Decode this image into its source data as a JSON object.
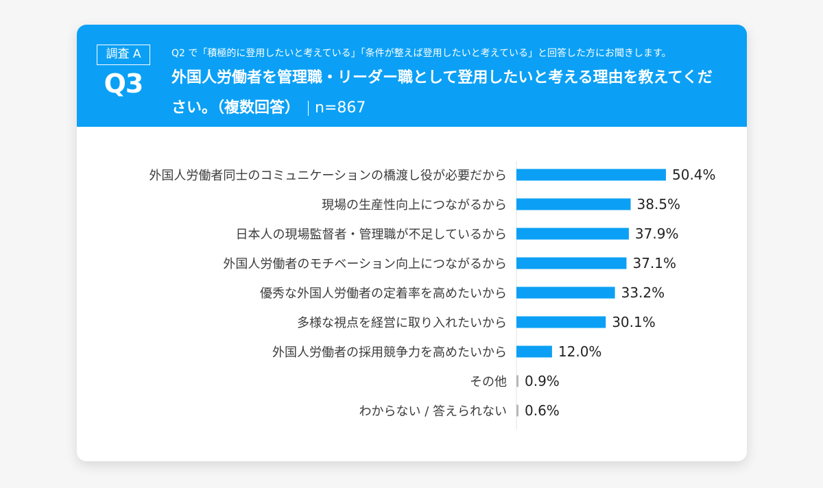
{
  "header": {
    "survey_tag": "調査 A",
    "question_number": "Q3",
    "pre_question": "Q2 で「積極的に登用したいと考えている」「条件が整えば登用したいと考えている」と回答した方にお聞きします。",
    "title": "外国人労働者を管理職・リーダー職として登用したいと考える理由を教えてください。（複数回答）",
    "sample_size": "n=867"
  },
  "colors": {
    "header_bg": "#0ba0f5",
    "bar": "#0ba0f5",
    "bar_small": "#b8b8b8"
  },
  "chart_data": {
    "type": "bar",
    "orientation": "horizontal",
    "unit": "%",
    "categories": [
      "外国人労働者同士のコミュニケーションの橋渡し役が必要だから",
      "現場の生産性向上につながるから",
      "日本人の現場監督者・管理職が不足しているから",
      "外国人労働者のモチベーション向上につながるから",
      "優秀な外国人労働者の定着率を高めたいから",
      "多様な視点を経営に取り入れたいから",
      "外国人労働者の採用競争力を高めたいから",
      "その他",
      "わからない / 答えられない"
    ],
    "values": [
      50.4,
      38.5,
      37.9,
      37.1,
      33.2,
      30.1,
      12.0,
      0.9,
      0.6
    ],
    "value_labels": [
      "50.4%",
      "38.5%",
      "37.9%",
      "37.1%",
      "33.2%",
      "30.1%",
      "12.0%",
      "0.9%",
      "0.6%"
    ],
    "xlim": [
      0,
      100
    ],
    "grid": false,
    "legend": "none"
  }
}
